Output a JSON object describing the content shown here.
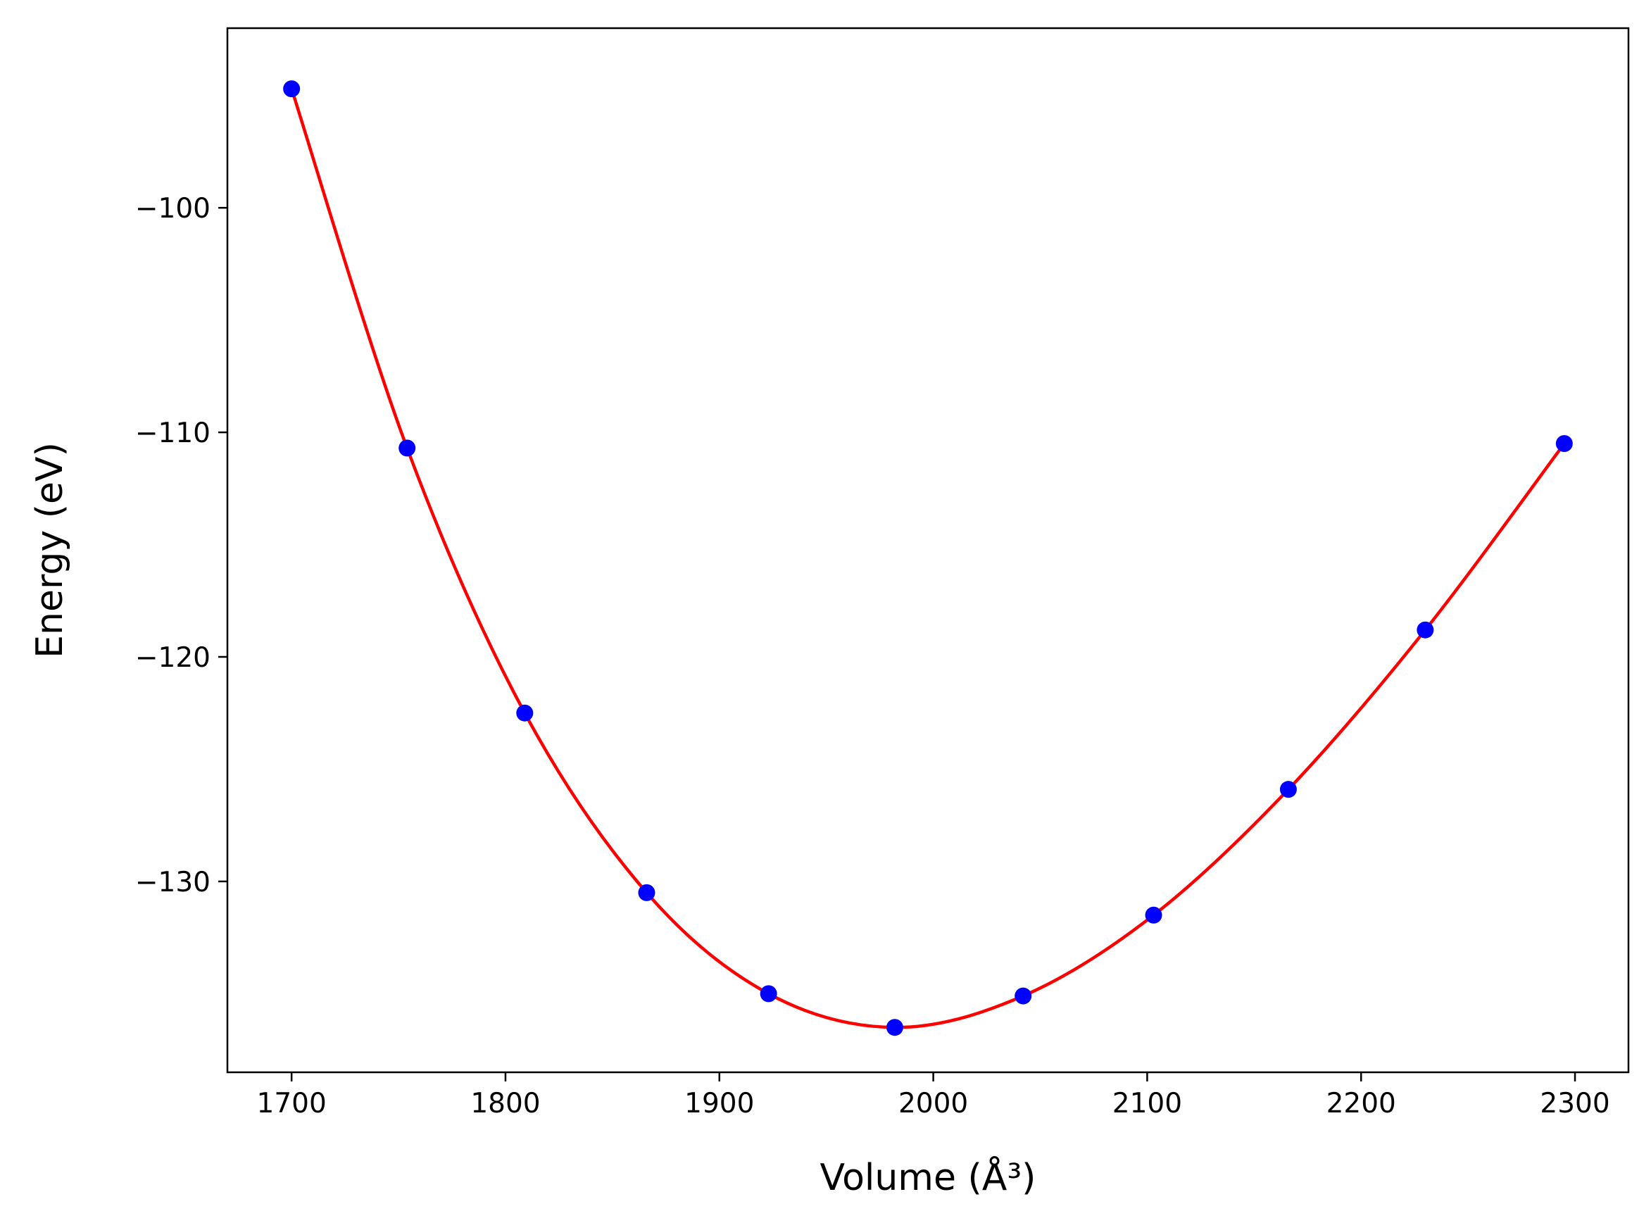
{
  "chart_data": {
    "type": "scatter",
    "title": "",
    "xlabel": "Volume (Å³)",
    "ylabel": "Energy (eV)",
    "xlim": [
      1670,
      2325
    ],
    "ylim": [
      -138.5,
      -92
    ],
    "x_ticks": [
      1700,
      1800,
      1900,
      2000,
      2100,
      2200,
      2300
    ],
    "y_ticks": [
      -100,
      -110,
      -120,
      -130
    ],
    "grid": false,
    "legend": "none",
    "series": [
      {
        "type": "scatter",
        "color": "#0000ff",
        "x": [
          1700,
          1754,
          1809,
          1866,
          1923,
          1982,
          2042,
          2103,
          2166,
          2230,
          2295
        ],
        "y": [
          -94.7,
          -110.7,
          -122.5,
          -130.5,
          -135.0,
          -136.5,
          -135.1,
          -131.5,
          -125.9,
          -118.8,
          -110.5
        ]
      },
      {
        "type": "line",
        "color": "#ff0000",
        "x": [
          1700,
          1754,
          1809,
          1866,
          1923,
          1982,
          2042,
          2103,
          2166,
          2230,
          2295
        ],
        "y": [
          -94.7,
          -110.7,
          -122.5,
          -130.5,
          -135.0,
          -136.5,
          -135.1,
          -131.5,
          -125.9,
          -118.8,
          -110.5
        ]
      }
    ]
  }
}
